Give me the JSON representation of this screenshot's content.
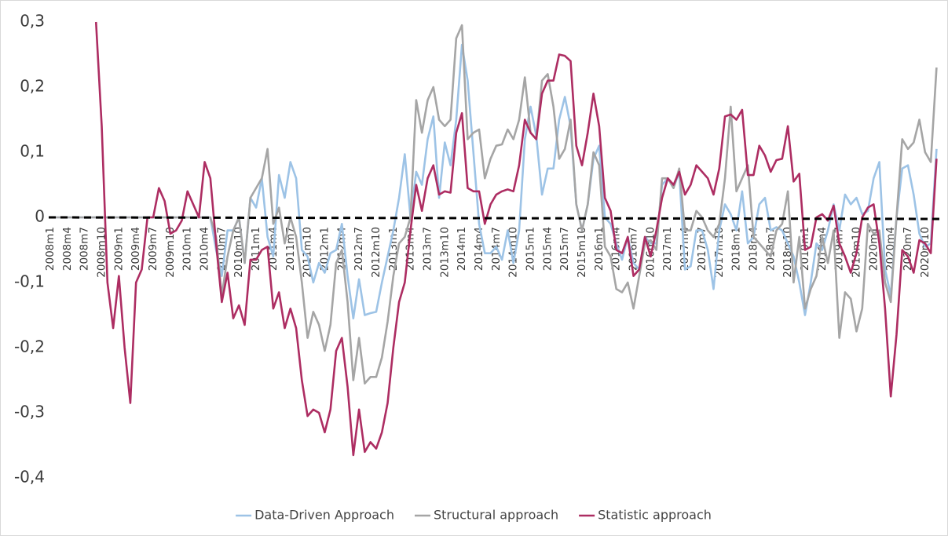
{
  "chart_data": {
    "type": "line",
    "categories": [
      "2008m1",
      null,
      null,
      "2008m4",
      null,
      null,
      "2008m7",
      null,
      null,
      "2008m10",
      null,
      null,
      "2009m1",
      null,
      null,
      "2009m4",
      null,
      null,
      "2009m7",
      null,
      null,
      "2009m10",
      null,
      null,
      "2010m1",
      null,
      null,
      "2010m4",
      null,
      null,
      "2010m7",
      null,
      null,
      "2010m10",
      null,
      null,
      "2011m1",
      null,
      null,
      "2011m4",
      null,
      null,
      "2011m7",
      null,
      null,
      "2011m10",
      null,
      null,
      "2012m1",
      null,
      null,
      "2012m4",
      null,
      null,
      "2012m7",
      null,
      null,
      "2012m10",
      null,
      null,
      "2013m1",
      null,
      null,
      "2013m4",
      null,
      null,
      "2013m7",
      null,
      null,
      "2013m10",
      null,
      null,
      "2014m1",
      null,
      null,
      "2014m4",
      null,
      null,
      "2014m7",
      null,
      null,
      "2014m10",
      null,
      null,
      "2015m1",
      null,
      null,
      "2015m4",
      null,
      null,
      "2015m7",
      null,
      null,
      "2015m10",
      null,
      null,
      "2016m1",
      null,
      null,
      "2016m4",
      null,
      null,
      "2016m7",
      null,
      null,
      "2016m10",
      null,
      null,
      "2017m1",
      null,
      null,
      "2017m4",
      null,
      null,
      "2017m7",
      null,
      null,
      "2017m10",
      null,
      null,
      "2018m1",
      null,
      null,
      "2018m4",
      null,
      null,
      "2018m7",
      null,
      null,
      "2018m10",
      null,
      null,
      "2019m1",
      null,
      null,
      "2019m4",
      null,
      null,
      "2019m7",
      null,
      null,
      "2019m10",
      null,
      null,
      "2020m1",
      null,
      null,
      "2020m4",
      null,
      null,
      "2020m7",
      null,
      null,
      "2020m10",
      null,
      null
    ],
    "series": [
      {
        "name": "Data-Driven Approach",
        "color": "#9dc3e6",
        "values": [
          0,
          0,
          0,
          0,
          0,
          0,
          0,
          0,
          0,
          0,
          0,
          0,
          0,
          0,
          0,
          0,
          0,
          0,
          0,
          0,
          0,
          0,
          0,
          0,
          0,
          0,
          0,
          0,
          0,
          -0.05,
          -0.09,
          -0.02,
          -0.02,
          0.0,
          -0.07,
          0.03,
          0.015,
          0.06,
          -0.03,
          -0.06,
          0.065,
          0.03,
          0.085,
          0.06,
          -0.05,
          -0.06,
          -0.1,
          -0.07,
          -0.085,
          -0.055,
          -0.05,
          -0.01,
          -0.09,
          -0.155,
          -0.095,
          -0.15,
          -0.147,
          -0.145,
          -0.1,
          -0.06,
          -0.02,
          0.03,
          0.097,
          0.0,
          0.07,
          0.05,
          0.12,
          0.155,
          0.03,
          0.115,
          0.08,
          0.15,
          0.265,
          0.21,
          0.1,
          -0.01,
          -0.055,
          -0.055,
          -0.045,
          -0.065,
          -0.02,
          -0.07,
          -0.02,
          0.12,
          0.17,
          0.125,
          0.035,
          0.075,
          0.075,
          0.15,
          0.185,
          0.14,
          0.02,
          -0.02,
          0.02,
          0.09,
          0.11,
          0.0,
          -0.01,
          -0.04,
          -0.065,
          -0.03,
          -0.07,
          -0.08,
          -0.03,
          -0.04,
          -0.04,
          0.05,
          0.06,
          0.045,
          0.07,
          -0.08,
          -0.075,
          -0.02,
          -0.02,
          -0.05,
          -0.11,
          -0.02,
          0.02,
          0.005,
          -0.02,
          0.04,
          -0.04,
          -0.03,
          0.02,
          0.03,
          -0.02,
          -0.015,
          -0.02,
          -0.04,
          -0.06,
          -0.1,
          -0.15,
          -0.1,
          -0.04,
          -0.05,
          -0.02,
          0.02,
          -0.02,
          0.035,
          0.02,
          0.03,
          0.005,
          0.01,
          0.06,
          0.085,
          -0.08,
          -0.12,
          0.0,
          0.075,
          0.08,
          0.035,
          -0.025,
          -0.045,
          -0.04,
          0.105
        ]
      },
      {
        "name": "Structural approach",
        "color": "#a5a5a5",
        "values": [
          0,
          0,
          0,
          0,
          0,
          0,
          0,
          0,
          0,
          0,
          0,
          0,
          0,
          0,
          0,
          0,
          0,
          0,
          0,
          0,
          0,
          0,
          0,
          0,
          0,
          0,
          0,
          0,
          0,
          -0.03,
          -0.12,
          -0.06,
          -0.02,
          0.0,
          -0.07,
          0.03,
          0.045,
          0.06,
          0.105,
          -0.01,
          0.015,
          -0.04,
          0.0,
          -0.03,
          -0.1,
          -0.185,
          -0.145,
          -0.165,
          -0.205,
          -0.165,
          -0.07,
          -0.05,
          -0.13,
          -0.25,
          -0.185,
          -0.255,
          -0.245,
          -0.245,
          -0.215,
          -0.16,
          -0.09,
          -0.04,
          -0.03,
          0.0,
          0.18,
          0.13,
          0.18,
          0.2,
          0.15,
          0.14,
          0.15,
          0.275,
          0.295,
          0.12,
          0.13,
          0.135,
          0.06,
          0.09,
          0.11,
          0.112,
          0.135,
          0.12,
          0.15,
          0.215,
          0.13,
          0.12,
          0.21,
          0.22,
          0.17,
          0.09,
          0.105,
          0.15,
          0.02,
          -0.02,
          0.02,
          0.1,
          0.08,
          -0.045,
          -0.06,
          -0.11,
          -0.115,
          -0.1,
          -0.14,
          -0.09,
          -0.04,
          -0.035,
          -0.05,
          0.06,
          0.06,
          0.045,
          0.075,
          -0.02,
          -0.02,
          0.01,
          0.0,
          -0.02,
          -0.03,
          -0.01,
          0.06,
          0.17,
          0.04,
          0.06,
          0.08,
          -0.03,
          -0.04,
          -0.05,
          -0.06,
          -0.02,
          -0.01,
          0.04,
          -0.1,
          -0.03,
          -0.14,
          -0.11,
          -0.09,
          -0.03,
          -0.07,
          -0.02,
          -0.185,
          -0.115,
          -0.125,
          -0.175,
          -0.14,
          -0.01,
          -0.025,
          -0.02,
          -0.1,
          -0.13,
          0.0,
          0.12,
          0.105,
          0.115,
          0.15,
          0.1,
          0.085,
          0.23
        ]
      },
      {
        "name": "Statistic approach",
        "color": "#ad2d62",
        "values": [
          null,
          null,
          null,
          null,
          null,
          null,
          null,
          null,
          0.3,
          0.14,
          -0.1,
          -0.17,
          -0.09,
          -0.2,
          -0.285,
          -0.1,
          -0.08,
          0.0,
          0.0,
          0.045,
          0.025,
          -0.025,
          -0.02,
          -0.005,
          0.04,
          0.02,
          0.0,
          0.085,
          0.06,
          -0.04,
          -0.13,
          -0.085,
          -0.155,
          -0.135,
          -0.165,
          -0.065,
          -0.065,
          -0.05,
          -0.045,
          -0.14,
          -0.115,
          -0.17,
          -0.14,
          -0.17,
          -0.25,
          -0.305,
          -0.295,
          -0.3,
          -0.33,
          -0.295,
          -0.205,
          -0.185,
          -0.26,
          -0.365,
          -0.295,
          -0.36,
          -0.345,
          -0.355,
          -0.33,
          -0.285,
          -0.2,
          -0.13,
          -0.1,
          -0.02,
          0.05,
          0.01,
          0.06,
          0.08,
          0.035,
          0.04,
          0.038,
          0.13,
          0.16,
          0.045,
          0.04,
          0.04,
          -0.01,
          0.02,
          0.035,
          0.04,
          0.043,
          0.04,
          0.08,
          0.15,
          0.13,
          0.12,
          0.19,
          0.21,
          0.21,
          0.25,
          0.248,
          0.24,
          0.11,
          0.08,
          0.13,
          0.19,
          0.14,
          0.03,
          0.01,
          -0.05,
          -0.055,
          -0.03,
          -0.09,
          -0.08,
          -0.03,
          -0.06,
          -0.02,
          0.03,
          0.06,
          0.05,
          0.07,
          0.035,
          0.05,
          0.08,
          0.07,
          0.06,
          0.035,
          0.075,
          0.155,
          0.158,
          0.15,
          0.165,
          0.065,
          0.065,
          0.11,
          0.095,
          0.07,
          0.088,
          0.09,
          0.14,
          0.055,
          0.067,
          -0.05,
          -0.045,
          0.0,
          0.005,
          -0.005,
          0.018,
          -0.04,
          -0.06,
          -0.085,
          -0.055,
          0.0,
          0.015,
          0.02,
          -0.04,
          -0.14,
          -0.275,
          -0.18,
          -0.05,
          -0.06,
          -0.085,
          -0.035,
          -0.04,
          -0.055,
          0.09
        ]
      }
    ],
    "ylim": [
      -0.4,
      0.3
    ],
    "yticks": [
      {
        "value": 0.3,
        "label": "0,3"
      },
      {
        "value": 0.2,
        "label": "0,2"
      },
      {
        "value": 0.1,
        "label": "0,1"
      },
      0,
      {
        "value": -0.1,
        "label": "-0,1"
      },
      {
        "value": -0.2,
        "label": "-0,2"
      },
      {
        "value": -0.3,
        "label": "-0,3"
      },
      {
        "value": -0.4,
        "label": "-0,4"
      }
    ],
    "reference_line": 0,
    "grid": false,
    "legend": "bottom"
  }
}
